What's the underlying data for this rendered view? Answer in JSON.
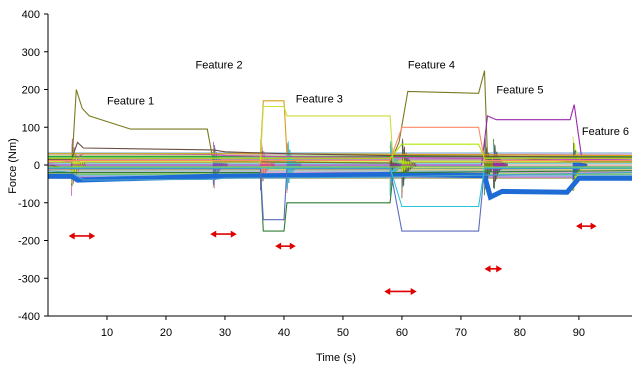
{
  "chart_data": {
    "type": "line",
    "title": "",
    "xlabel": "Time (s)",
    "ylabel": "Force (Nm)",
    "xlim": [
      0,
      99
    ],
    "ylim": [
      -400,
      400
    ],
    "x_ticks": [
      10,
      20,
      30,
      40,
      50,
      60,
      70,
      80,
      90
    ],
    "y_ticks": [
      400,
      300,
      200,
      100,
      0,
      -100,
      -200,
      -300,
      -400
    ],
    "grid": false,
    "legend": "none",
    "annotations": [
      {
        "text": "Feature 1",
        "x": 14,
        "y": 160
      },
      {
        "text": "Feature 2",
        "x": 29,
        "y": 255
      },
      {
        "text": "Feature 3",
        "x": 46,
        "y": 165
      },
      {
        "text": "Feature 4",
        "x": 65,
        "y": 255
      },
      {
        "text": "Feature 5",
        "x": 80,
        "y": 190
      },
      {
        "text": "Feature 6",
        "x": 94.5,
        "y": 80
      }
    ],
    "feature_windows": [
      {
        "x0": 3.5,
        "x1": 8,
        "y": -188
      },
      {
        "x0": 27.5,
        "x1": 32,
        "y": -183
      },
      {
        "x0": 38.5,
        "x1": 42,
        "y": -215
      },
      {
        "x0": 57,
        "x1": 62.5,
        "y": -335
      },
      {
        "x0": 74,
        "x1": 77,
        "y": -275
      },
      {
        "x0": 89.5,
        "x1": 93,
        "y": -162
      }
    ],
    "transient_times": [
      4,
      28,
      36,
      40.5,
      58,
      60,
      74,
      75.5,
      89
    ],
    "band_colors": [
      "#7a7a20",
      "#9c27b0",
      "#1e6bd6",
      "#21a13a",
      "#8bc34a",
      "#c64fb2",
      "#4aa3c9",
      "#d4a017",
      "#2e7d32",
      "#cddc39",
      "#5c6bc0",
      "#ff8a65",
      "#26c6da",
      "#6d4c41",
      "#aeea00"
    ],
    "series": [
      {
        "values": [
          [
            0,
            0
          ],
          [
            4,
            -10
          ],
          [
            4.8,
            200
          ],
          [
            5.8,
            150
          ],
          [
            7,
            130
          ],
          [
            14,
            95
          ],
          [
            27,
            95
          ],
          [
            28,
            10
          ],
          [
            58,
            5
          ],
          [
            59.5,
            60
          ],
          [
            61,
            195
          ],
          [
            73,
            190
          ],
          [
            74,
            250
          ],
          [
            74.5,
            20
          ],
          [
            89,
            10
          ],
          [
            99,
            10
          ]
        ]
      },
      {
        "values": [
          [
            0,
            0
          ],
          [
            73.5,
            0
          ],
          [
            74.5,
            130
          ],
          [
            76,
            120
          ],
          [
            88.5,
            120
          ],
          [
            89.2,
            160
          ],
          [
            90.5,
            15
          ],
          [
            99,
            12
          ]
        ]
      },
      {
        "values": [
          [
            0,
            -30
          ],
          [
            4,
            -30
          ],
          [
            5,
            -40
          ],
          [
            28,
            -30
          ],
          [
            58,
            -25
          ],
          [
            74,
            -28
          ],
          [
            75,
            -85
          ],
          [
            77,
            -70
          ],
          [
            88,
            -72
          ],
          [
            90,
            -35
          ],
          [
            99,
            -35
          ]
        ]
      },
      {
        "values": [
          [
            0,
            22
          ],
          [
            99,
            22
          ]
        ]
      },
      {
        "values": [
          [
            0,
            -5
          ],
          [
            99,
            -5
          ]
        ]
      },
      {
        "values": [
          [
            0,
            5
          ],
          [
            4,
            10
          ],
          [
            6,
            30
          ],
          [
            28,
            28
          ],
          [
            30,
            25
          ],
          [
            40,
            22
          ],
          [
            58,
            20
          ],
          [
            74,
            18
          ],
          [
            99,
            12
          ]
        ]
      },
      {
        "values": [
          [
            0,
            -15
          ],
          [
            4,
            -20
          ],
          [
            6,
            -40
          ],
          [
            28,
            -38
          ],
          [
            30,
            -35
          ],
          [
            58,
            -32
          ],
          [
            62,
            -30
          ],
          [
            99,
            -20
          ]
        ]
      },
      {
        "values": [
          [
            0,
            30
          ],
          [
            36,
            30
          ],
          [
            36.5,
            170
          ],
          [
            40,
            170
          ],
          [
            40.5,
            30
          ],
          [
            99,
            25
          ]
        ]
      },
      {
        "values": [
          [
            0,
            -20
          ],
          [
            36,
            -20
          ],
          [
            36.5,
            -175
          ],
          [
            40,
            -175
          ],
          [
            40.5,
            -100
          ],
          [
            58,
            -100
          ],
          [
            58.5,
            -20
          ],
          [
            99,
            -15
          ]
        ]
      },
      {
        "values": [
          [
            0,
            8
          ],
          [
            36,
            8
          ],
          [
            36.5,
            155
          ],
          [
            40,
            155
          ],
          [
            40.5,
            130
          ],
          [
            58,
            130
          ],
          [
            58.5,
            8
          ],
          [
            99,
            8
          ]
        ]
      },
      {
        "values": [
          [
            0,
            -10
          ],
          [
            36,
            -10
          ],
          [
            36.5,
            -145
          ],
          [
            40,
            -145
          ],
          [
            40.5,
            -10
          ],
          [
            58,
            -10
          ],
          [
            60,
            -175
          ],
          [
            73,
            -175
          ],
          [
            74,
            -10
          ],
          [
            99,
            -8
          ]
        ]
      },
      {
        "values": [
          [
            0,
            12
          ],
          [
            58,
            12
          ],
          [
            60,
            100
          ],
          [
            73,
            100
          ],
          [
            74,
            12
          ],
          [
            99,
            12
          ]
        ]
      },
      {
        "values": [
          [
            0,
            -8
          ],
          [
            58,
            -8
          ],
          [
            60,
            -110
          ],
          [
            73,
            -110
          ],
          [
            74,
            -8
          ],
          [
            99,
            -8
          ]
        ]
      },
      {
        "values": [
          [
            0,
            15
          ],
          [
            4,
            15
          ],
          [
            5,
            60
          ],
          [
            6,
            45
          ],
          [
            28,
            40
          ],
          [
            30,
            35
          ],
          [
            40,
            30
          ],
          [
            58,
            25
          ],
          [
            99,
            20
          ]
        ]
      },
      {
        "values": [
          [
            0,
            18
          ],
          [
            58,
            18
          ],
          [
            60,
            55
          ],
          [
            73,
            55
          ],
          [
            74,
            18
          ],
          [
            99,
            18
          ]
        ]
      }
    ]
  }
}
